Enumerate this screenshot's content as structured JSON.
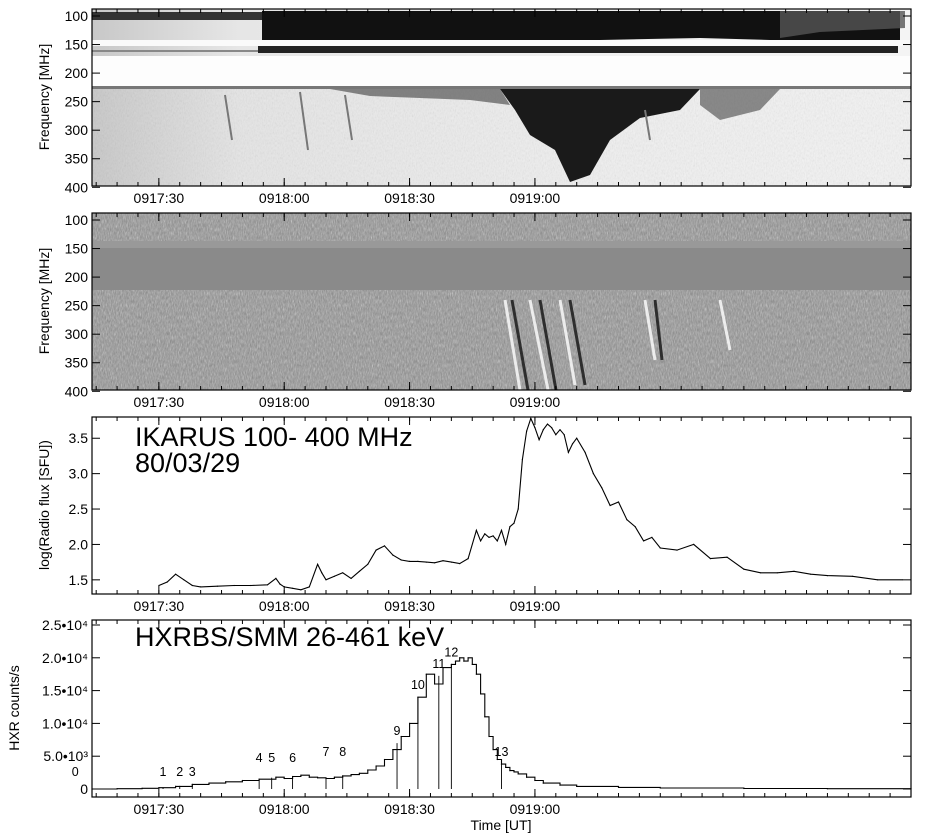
{
  "chart_data": [
    {
      "type": "heatmap",
      "panel": "dynamic-spectrum-raw",
      "ylabel": "Frequency [MHz]",
      "yticks": [
        "100",
        "150",
        "200",
        "250",
        "300",
        "350",
        "400"
      ],
      "ylim": [
        100,
        410
      ],
      "y_inverted": true,
      "xticks": [
        "0917:30",
        "0918:00",
        "0918:30",
        "0919:00"
      ],
      "colormap": "grayscale"
    },
    {
      "type": "heatmap",
      "panel": "dynamic-spectrum-differenced",
      "ylabel": "Frequency [MHz]",
      "yticks": [
        "100",
        "150",
        "200",
        "250",
        "300",
        "350",
        "400"
      ],
      "ylim": [
        100,
        410
      ],
      "y_inverted": true,
      "xticks": [
        "0917:30",
        "0918:00",
        "0918:30",
        "0919:00"
      ],
      "colormap": "grayscale"
    },
    {
      "type": "line",
      "panel": "radio-flux",
      "title": "IKARUS   100- 400 MHz",
      "subtitle": "80/03/29",
      "ylabel": "log(Radio flux [SFU])",
      "yticks": [
        "1.5",
        "2.0",
        "2.5",
        "3.0",
        "3.5"
      ],
      "ylim": [
        1.3,
        3.8
      ],
      "xticks": [
        "0917:30",
        "0918:00",
        "0918:30",
        "0919:00"
      ],
      "x_seconds": [
        0,
        2,
        4,
        6,
        8,
        10,
        14,
        18,
        22,
        26,
        28,
        29,
        30,
        32,
        34,
        36,
        38,
        39,
        40,
        42,
        44,
        46,
        48,
        50,
        52,
        54,
        56,
        58,
        60,
        62,
        64,
        66,
        68,
        70,
        72,
        74,
        76,
        77,
        78,
        79,
        80,
        81,
        82,
        83,
        84,
        85,
        86,
        87,
        88,
        89,
        90,
        91,
        92,
        93,
        94,
        95,
        96,
        97,
        98,
        99,
        100,
        102,
        104,
        106,
        108,
        110,
        112,
        114,
        116,
        118,
        120,
        124,
        128,
        132,
        136,
        140,
        144,
        148,
        152,
        156,
        160,
        166,
        172,
        178
      ],
      "values": [
        1.42,
        1.47,
        1.58,
        1.5,
        1.42,
        1.4,
        1.41,
        1.42,
        1.42,
        1.43,
        1.52,
        1.44,
        1.4,
        1.38,
        1.36,
        1.4,
        1.72,
        1.6,
        1.5,
        1.55,
        1.6,
        1.52,
        1.62,
        1.72,
        1.92,
        1.98,
        1.85,
        1.78,
        1.76,
        1.76,
        1.75,
        1.74,
        1.77,
        1.75,
        1.73,
        1.8,
        2.2,
        2.05,
        2.15,
        2.1,
        2.12,
        2.05,
        2.2,
        2.0,
        2.25,
        2.3,
        2.5,
        3.2,
        3.6,
        3.78,
        3.65,
        3.48,
        3.62,
        3.7,
        3.65,
        3.55,
        3.62,
        3.55,
        3.3,
        3.42,
        3.5,
        3.3,
        3.0,
        2.8,
        2.55,
        2.6,
        2.35,
        2.25,
        2.05,
        2.1,
        1.95,
        1.92,
        2.0,
        1.8,
        1.82,
        1.65,
        1.6,
        1.6,
        1.62,
        1.58,
        1.56,
        1.55,
        1.5,
        1.5
      ],
      "x_range_seconds": [
        -16,
        180
      ],
      "x_ticks_seconds": [
        0,
        30,
        60,
        90
      ]
    },
    {
      "type": "line",
      "panel": "hxr-counts",
      "title": "HXRBS/SMM  26-461 keV",
      "ylabel": "HXR counts/s",
      "xlabel": "Time [UT]",
      "yticks": [
        "0",
        "5.0•10³",
        "1.0•10⁴",
        "1.5•10⁴",
        "2.0•10⁴",
        "2.5•10⁴"
      ],
      "ylim": [
        0,
        25000
      ],
      "xticks": [
        "0917:30",
        "0918:00",
        "0918:30",
        "0919:00"
      ],
      "x_seconds": [
        -16,
        -10,
        -4,
        0,
        4,
        8,
        12,
        16,
        20,
        24,
        28,
        30,
        32,
        34,
        36,
        38,
        40,
        42,
        44,
        46,
        48,
        50,
        52,
        54,
        56,
        58,
        60,
        62,
        64,
        66,
        68,
        70,
        71,
        72,
        73,
        74,
        75,
        76,
        77,
        78,
        79,
        80,
        81,
        82,
        83,
        84,
        85,
        86,
        88,
        90,
        92,
        96,
        100,
        110,
        120,
        140,
        160,
        180
      ],
      "values": [
        0,
        50,
        100,
        200,
        400,
        700,
        900,
        1100,
        1300,
        1500,
        1800,
        1600,
        1900,
        2100,
        1800,
        1700,
        1600,
        1800,
        2000,
        2200,
        2400,
        2900,
        3500,
        4500,
        6000,
        8000,
        10000,
        14000,
        17500,
        16000,
        18500,
        19000,
        19500,
        20000,
        19500,
        20000,
        19000,
        17500,
        14500,
        11000,
        8000,
        6000,
        4500,
        3800,
        3300,
        2800,
        2600,
        2300,
        1800,
        1300,
        900,
        600,
        400,
        250,
        150,
        80,
        40,
        20
      ],
      "x_range_seconds": [
        -16,
        180
      ],
      "x_ticks_seconds": [
        0,
        30,
        60,
        90
      ],
      "markers": [
        {
          "label": "0",
          "t": -20
        },
        {
          "label": "1",
          "t": 1
        },
        {
          "label": "2",
          "t": 5
        },
        {
          "label": "3",
          "t": 8
        },
        {
          "label": "4",
          "t": 24
        },
        {
          "label": "5",
          "t": 27
        },
        {
          "label": "6",
          "t": 32
        },
        {
          "label": "7",
          "t": 40
        },
        {
          "label": "8",
          "t": 44
        },
        {
          "label": "9",
          "t": 57
        },
        {
          "label": "10",
          "t": 62
        },
        {
          "label": "11",
          "t": 67
        },
        {
          "label": "12",
          "t": 70
        },
        {
          "label": "13",
          "t": 82
        }
      ]
    }
  ]
}
